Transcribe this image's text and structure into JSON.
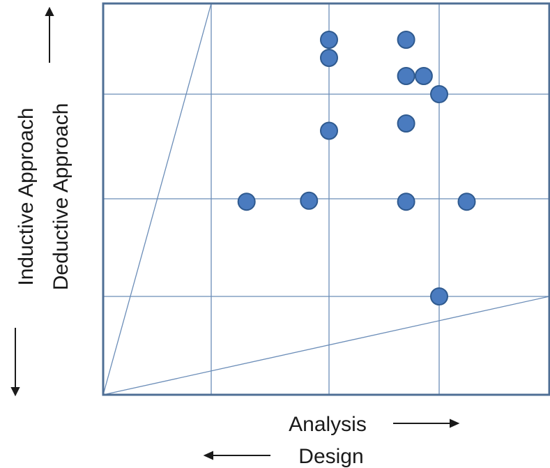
{
  "chart_data": {
    "type": "scatter",
    "x_label_primary": "Analysis",
    "x_label_secondary": "Design",
    "y_label_primary": "Deductive Approach",
    "y_label_secondary": "Inductive Approach",
    "points": [
      {
        "x": 2.0,
        "y": 3.6
      },
      {
        "x": 2.0,
        "y": 3.4
      },
      {
        "x": 2.7,
        "y": 3.6
      },
      {
        "x": 2.7,
        "y": 3.2
      },
      {
        "x": 2.86,
        "y": 3.2
      },
      {
        "x": 3.0,
        "y": 3.0
      },
      {
        "x": 2.0,
        "y": 2.65
      },
      {
        "x": 2.7,
        "y": 2.72
      },
      {
        "x": 1.3,
        "y": 1.97
      },
      {
        "x": 1.83,
        "y": 1.98
      },
      {
        "x": 2.7,
        "y": 1.97
      },
      {
        "x": 3.25,
        "y": 1.97
      },
      {
        "x": 3.0,
        "y": 1.0
      }
    ],
    "xlim": [
      0,
      4
    ],
    "ylim": [
      0,
      4
    ],
    "x_grid": [
      1,
      2,
      3,
      4
    ],
    "y_grid": [
      1,
      2,
      3,
      4
    ],
    "colors": {
      "frame": "#4f6f95",
      "grid": "#6b8db8",
      "point_fill": "#4a7bbf",
      "point_edge": "#2f5a8f"
    }
  }
}
